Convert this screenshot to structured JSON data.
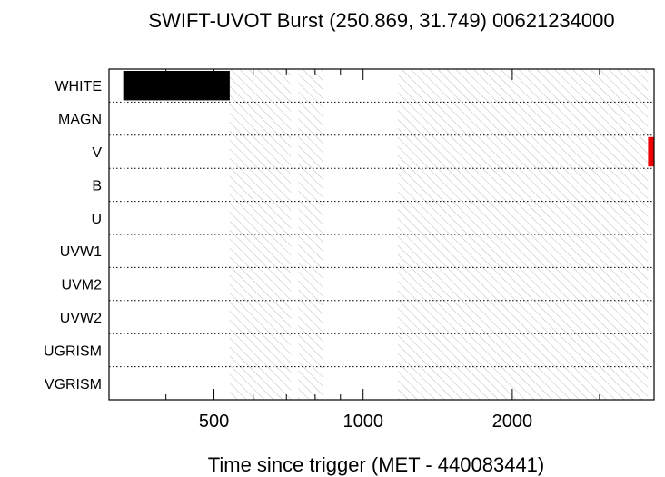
{
  "chart_data": {
    "type": "timeline",
    "title": "SWIFT-UVOT Burst (250.869, 31.749) 00621234000",
    "xlabel": "Time since trigger (MET - 440083441)",
    "x_scale": "log",
    "xlim": [
      307,
      3866
    ],
    "x_tick_labels": [
      {
        "label": "500",
        "value": 500
      },
      {
        "label": "1000",
        "value": 1000
      },
      {
        "label": "2000",
        "value": 2000
      }
    ],
    "x_minor_ticks": [
      400,
      600,
      700,
      800,
      900,
      3000
    ],
    "filters": [
      "WHITE",
      "MAGN",
      "V",
      "B",
      "U",
      "UVW1",
      "UVM2",
      "UVW2",
      "UGRISM",
      "VGRISM"
    ],
    "hatched_intervals": [
      [
        538,
        715
      ],
      [
        740,
        828
      ],
      [
        1175,
        3760
      ]
    ],
    "exposures": [
      {
        "filter": "WHITE",
        "start": 328,
        "stop": 538,
        "color": "#000000"
      },
      {
        "filter": "V",
        "start": 3760,
        "stop": 3866,
        "color": "#ee0000"
      }
    ],
    "grid": "dotted row separators"
  }
}
